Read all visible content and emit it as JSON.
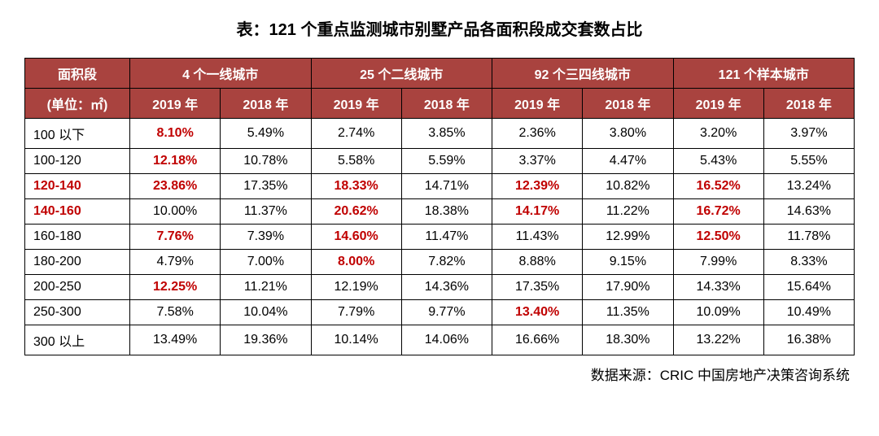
{
  "title": "表：121 个重点监测城市别墅产品各面积段成交套数占比",
  "colHeaders": {
    "area": "面积段",
    "unit": "(单位：㎡)",
    "groups": [
      "4 个一线城市",
      "25 个二线城市",
      "92 个三四线城市",
      "121 个样本城市"
    ],
    "years": [
      "2019 年",
      "2018 年"
    ]
  },
  "rows": [
    {
      "area": "100 以下",
      "areaHL": false,
      "cells": [
        {
          "v": "8.10%",
          "hl": true
        },
        {
          "v": "5.49%",
          "hl": false
        },
        {
          "v": "2.74%",
          "hl": false
        },
        {
          "v": "3.85%",
          "hl": false
        },
        {
          "v": "2.36%",
          "hl": false
        },
        {
          "v": "3.80%",
          "hl": false
        },
        {
          "v": "3.20%",
          "hl": false
        },
        {
          "v": "3.97%",
          "hl": false
        }
      ]
    },
    {
      "area": "100-120",
      "areaHL": false,
      "cells": [
        {
          "v": "12.18%",
          "hl": true
        },
        {
          "v": "10.78%",
          "hl": false
        },
        {
          "v": "5.58%",
          "hl": false
        },
        {
          "v": "5.59%",
          "hl": false
        },
        {
          "v": "3.37%",
          "hl": false
        },
        {
          "v": "4.47%",
          "hl": false
        },
        {
          "v": "5.43%",
          "hl": false
        },
        {
          "v": "5.55%",
          "hl": false
        }
      ]
    },
    {
      "area": "120-140",
      "areaHL": true,
      "cells": [
        {
          "v": "23.86%",
          "hl": true
        },
        {
          "v": "17.35%",
          "hl": false
        },
        {
          "v": "18.33%",
          "hl": true
        },
        {
          "v": "14.71%",
          "hl": false
        },
        {
          "v": "12.39%",
          "hl": true
        },
        {
          "v": "10.82%",
          "hl": false
        },
        {
          "v": "16.52%",
          "hl": true
        },
        {
          "v": "13.24%",
          "hl": false
        }
      ]
    },
    {
      "area": "140-160",
      "areaHL": true,
      "cells": [
        {
          "v": "10.00%",
          "hl": false
        },
        {
          "v": "11.37%",
          "hl": false
        },
        {
          "v": "20.62%",
          "hl": true
        },
        {
          "v": "18.38%",
          "hl": false
        },
        {
          "v": "14.17%",
          "hl": true
        },
        {
          "v": "11.22%",
          "hl": false
        },
        {
          "v": "16.72%",
          "hl": true
        },
        {
          "v": "14.63%",
          "hl": false
        }
      ]
    },
    {
      "area": "160-180",
      "areaHL": false,
      "cells": [
        {
          "v": "7.76%",
          "hl": true
        },
        {
          "v": "7.39%",
          "hl": false
        },
        {
          "v": "14.60%",
          "hl": true
        },
        {
          "v": "11.47%",
          "hl": false
        },
        {
          "v": "11.43%",
          "hl": false
        },
        {
          "v": "12.99%",
          "hl": false
        },
        {
          "v": "12.50%",
          "hl": true
        },
        {
          "v": "11.78%",
          "hl": false
        }
      ]
    },
    {
      "area": "180-200",
      "areaHL": false,
      "cells": [
        {
          "v": "4.79%",
          "hl": false
        },
        {
          "v": "7.00%",
          "hl": false
        },
        {
          "v": "8.00%",
          "hl": true
        },
        {
          "v": "7.82%",
          "hl": false
        },
        {
          "v": "8.88%",
          "hl": false
        },
        {
          "v": "9.15%",
          "hl": false
        },
        {
          "v": "7.99%",
          "hl": false
        },
        {
          "v": "8.33%",
          "hl": false
        }
      ]
    },
    {
      "area": "200-250",
      "areaHL": false,
      "cells": [
        {
          "v": "12.25%",
          "hl": true
        },
        {
          "v": "11.21%",
          "hl": false
        },
        {
          "v": "12.19%",
          "hl": false
        },
        {
          "v": "14.36%",
          "hl": false
        },
        {
          "v": "17.35%",
          "hl": false
        },
        {
          "v": "17.90%",
          "hl": false
        },
        {
          "v": "14.33%",
          "hl": false
        },
        {
          "v": "15.64%",
          "hl": false
        }
      ]
    },
    {
      "area": "250-300",
      "areaHL": false,
      "cells": [
        {
          "v": "7.58%",
          "hl": false
        },
        {
          "v": "10.04%",
          "hl": false
        },
        {
          "v": "7.79%",
          "hl": false
        },
        {
          "v": "9.77%",
          "hl": false
        },
        {
          "v": "13.40%",
          "hl": true
        },
        {
          "v": "11.35%",
          "hl": false
        },
        {
          "v": "10.09%",
          "hl": false
        },
        {
          "v": "10.49%",
          "hl": false
        }
      ]
    },
    {
      "area": "300 以上",
      "areaHL": false,
      "cells": [
        {
          "v": "13.49%",
          "hl": false
        },
        {
          "v": "19.36%",
          "hl": false
        },
        {
          "v": "10.14%",
          "hl": false
        },
        {
          "v": "14.06%",
          "hl": false
        },
        {
          "v": "16.66%",
          "hl": false
        },
        {
          "v": "18.30%",
          "hl": false
        },
        {
          "v": "13.22%",
          "hl": false
        },
        {
          "v": "16.38%",
          "hl": false
        }
      ]
    }
  ],
  "source": "数据来源：CRIC 中国房地产决策咨询系统",
  "style": {
    "headerBg": "#a9433f",
    "headerText": "#ffffff",
    "border": "#000000",
    "highlight": "#c00000",
    "bodyText": "#000000",
    "background": "#ffffff",
    "titleFontSize": 20,
    "cellFontSize": 16
  }
}
